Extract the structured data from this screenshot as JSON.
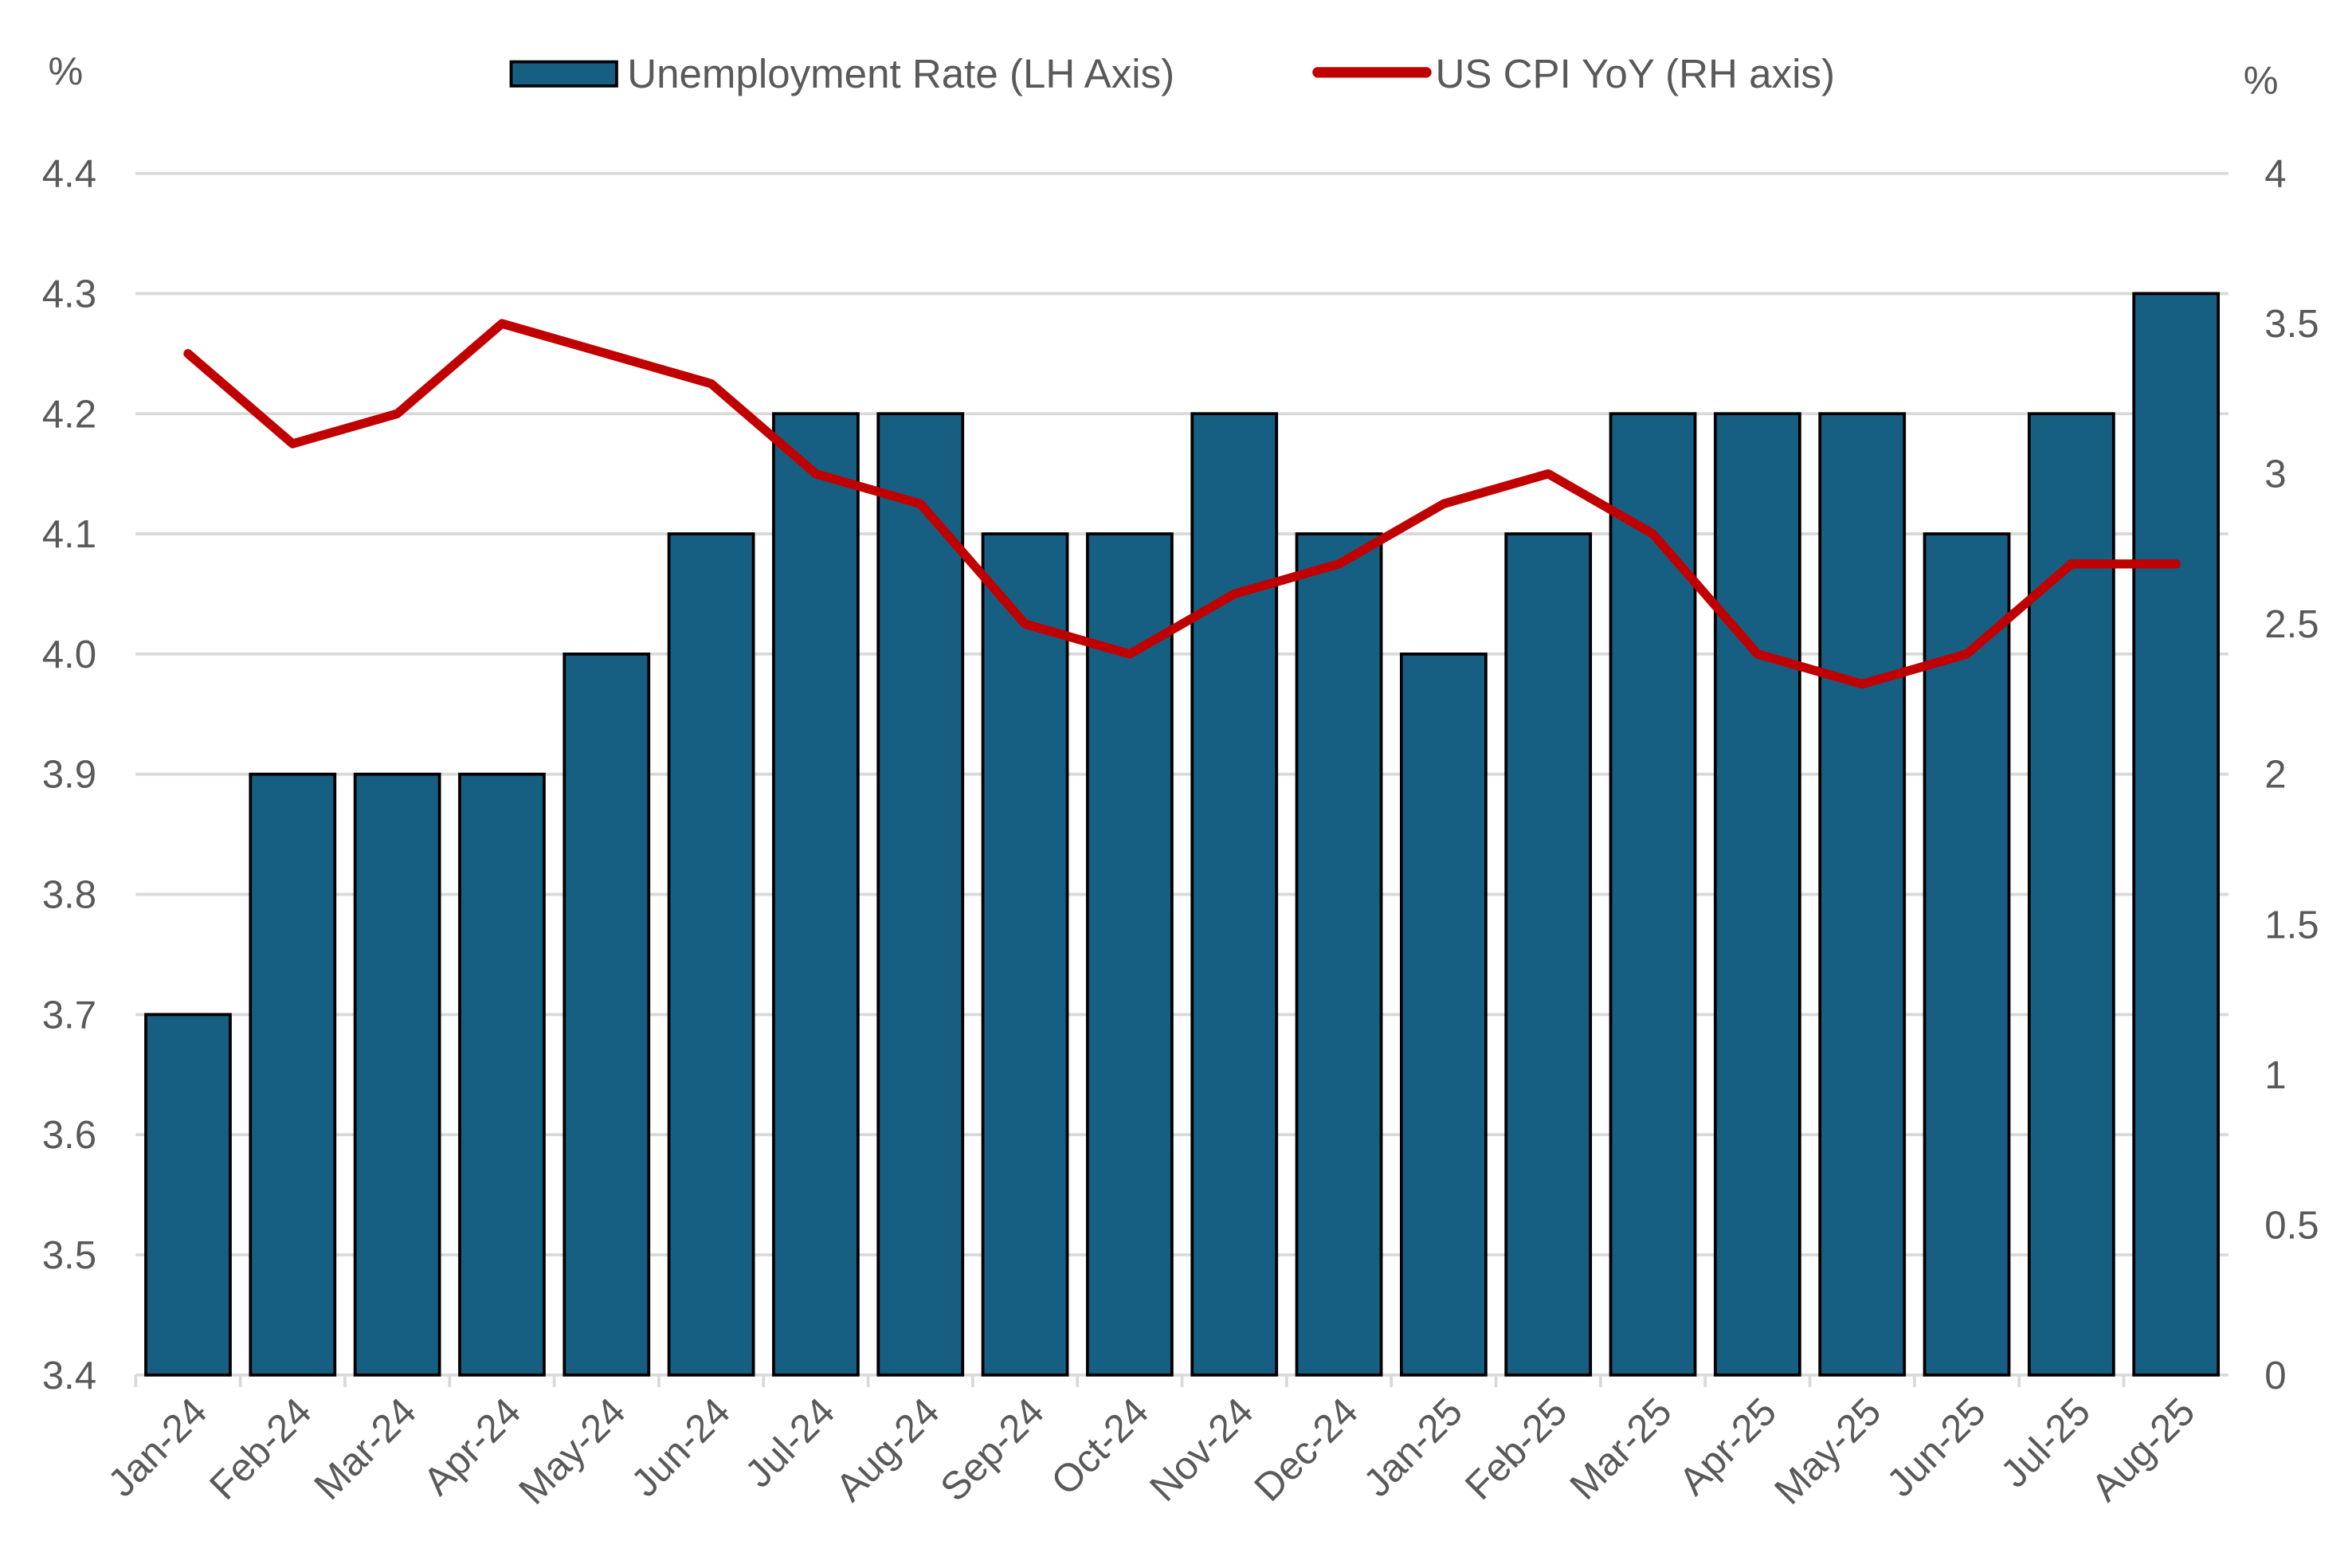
{
  "chart_data": {
    "type": "bar+line",
    "categories": [
      "Jan-24",
      "Feb-24",
      "Mar-24",
      "Apr-24",
      "May-24",
      "Jun-24",
      "Jul-24",
      "Aug-24",
      "Sep-24",
      "Oct-24",
      "Nov-24",
      "Dec-24",
      "Jan-25",
      "Feb-25",
      "Mar-25",
      "Apr-25",
      "May-25",
      "Jun-25",
      "Jul-25",
      "Aug-25"
    ],
    "series": [
      {
        "name": "Unemployment Rate (LH Axis)",
        "type": "bar",
        "axis": "left",
        "color": "#175f82",
        "values": [
          3.7,
          3.9,
          3.9,
          3.9,
          4.0,
          4.1,
          4.2,
          4.2,
          4.1,
          4.1,
          4.2,
          4.1,
          4.0,
          4.1,
          4.2,
          4.2,
          4.2,
          4.1,
          4.2,
          4.3
        ]
      },
      {
        "name": "US CPI YoY (RH axis)",
        "type": "line",
        "axis": "right",
        "color": "#c00000",
        "values": [
          3.4,
          3.1,
          3.2,
          3.5,
          3.4,
          3.3,
          3.0,
          2.9,
          2.5,
          2.4,
          2.6,
          2.7,
          2.9,
          3.0,
          2.8,
          2.4,
          2.3,
          2.4,
          2.7,
          2.7
        ]
      }
    ],
    "y_left": {
      "label": "%",
      "ylim": [
        3.4,
        4.4
      ],
      "ticks": [
        "3.4",
        "3.5",
        "3.6",
        "3.7",
        "3.8",
        "3.9",
        "4.0",
        "4.1",
        "4.2",
        "4.3",
        "4.4"
      ]
    },
    "y_right": {
      "label": "%",
      "ylim": [
        0,
        4
      ],
      "ticks": [
        "0",
        "0.5",
        "1",
        "1.5",
        "2",
        "2.5",
        "3",
        "3.5",
        "4"
      ]
    },
    "grid": true,
    "legend": "top-center"
  }
}
